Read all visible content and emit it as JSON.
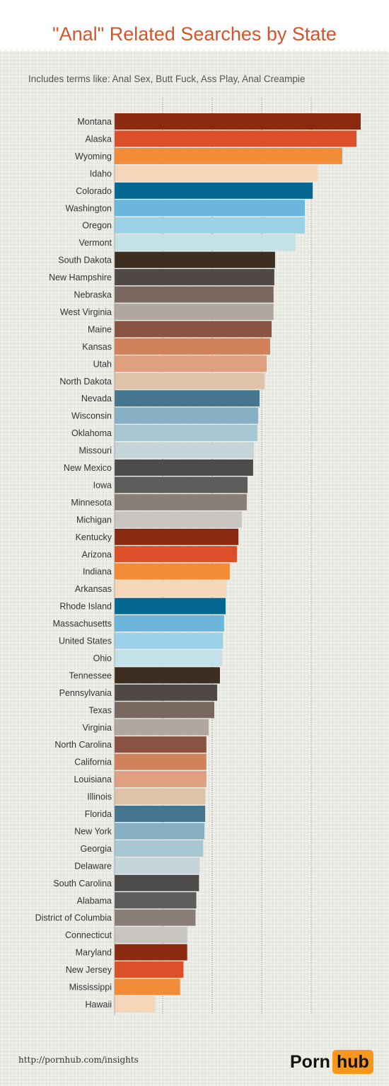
{
  "title": "\"Anal\" Related Searches by State",
  "subtitle": "Includes terms like: Anal Sex, Butt Fuck, Ass Play, Anal Creampie",
  "footer": {
    "url": "http://pornhub.com/insights"
  },
  "logo": {
    "part1": "Porn",
    "part2": "hub"
  },
  "colors": {
    "title": "#d4542a",
    "header_bg": "#ffffff",
    "background": "#efefea",
    "logo_accent": "#f7971d",
    "palette": [
      "#8b2a10",
      "#dc5029",
      "#f38c37",
      "#f5d6b8",
      "#046792",
      "#6cb6de",
      "#9bd2e8",
      "#c3e1e6",
      "#3d2e22",
      "#4f4845",
      "#786860",
      "#b0a89f",
      "#8a5242",
      "#d1825a",
      "#e09f7e",
      "#dfc2a8",
      "#46768d",
      "#86afc3",
      "#a7c7d2",
      "#c6d5da",
      "#4e4c4a",
      "#5e5c5b",
      "#8a7e79",
      "#c7c4c1"
    ]
  },
  "chart_data": {
    "type": "bar",
    "orientation": "horizontal",
    "title": "\"Anal\" Related Searches by State",
    "subtitle": "Includes terms like: Anal Sex, Butt Fuck, Ass Play, Anal Creampie",
    "xlabel": "",
    "ylabel": "",
    "xlim": [
      0,
      100
    ],
    "grid": true,
    "categories": [
      "Montana",
      "Alaska",
      "Wyoming",
      "Idaho",
      "Colorado",
      "Washington",
      "Oregon",
      "Vermont",
      "South Dakota",
      "New Hampshire",
      "Nebraska",
      "West Virginia",
      "Maine",
      "Kansas",
      "Utah",
      "North Dakota",
      "Nevada",
      "Wisconsin",
      "Oklahoma",
      "Missouri",
      "New Mexico",
      "Iowa",
      "Minnesota",
      "Michigan",
      "Kentucky",
      "Arizona",
      "Indiana",
      "Arkansas",
      "Rhode Island",
      "Massachusetts",
      "United States",
      "Ohio",
      "Tennessee",
      "Pennsylvania",
      "Texas",
      "Virginia",
      "North Carolina",
      "California",
      "Louisiana",
      "Illinois",
      "Florida",
      "New York",
      "Georgia",
      "Delaware",
      "South Carolina",
      "Alabama",
      "District of Columbia",
      "Connecticut",
      "Maryland",
      "New Jersey",
      "Mississippi",
      "Hawaii"
    ],
    "values": [
      100,
      98.3,
      92.5,
      82.5,
      80.5,
      77.3,
      77.3,
      73.5,
      65.2,
      64.9,
      64.6,
      64.6,
      63.8,
      63.2,
      61.8,
      61.0,
      58.9,
      58.3,
      58.0,
      56.6,
      56.3,
      54.0,
      53.7,
      51.7,
      50.3,
      49.7,
      46.8,
      45.4,
      45.1,
      44.5,
      44.0,
      43.7,
      42.8,
      41.7,
      40.5,
      38.2,
      37.3,
      37.3,
      37.3,
      36.8,
      36.8,
      36.5,
      36.0,
      34.6,
      34.3,
      33.2,
      32.9,
      29.5,
      29.5,
      28.0,
      26.6,
      16.5
    ]
  }
}
